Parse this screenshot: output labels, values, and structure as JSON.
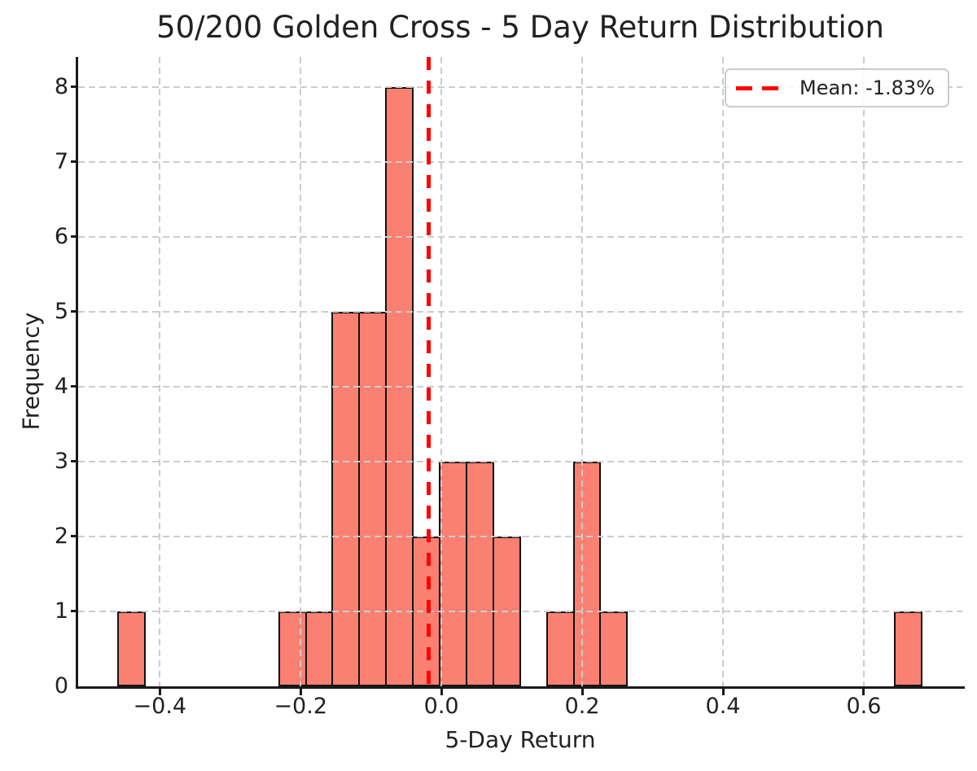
{
  "chart_data": {
    "type": "bar",
    "subtype": "histogram",
    "title": "50/200 Golden Cross - 5 Day Return Distribution",
    "xlabel": "5-Day Return",
    "ylabel": "Frequency",
    "xlim": [
      -0.516,
      0.74
    ],
    "ylim": [
      0,
      8.4
    ],
    "xticks": [
      -0.4,
      -0.2,
      0.0,
      0.2,
      0.4,
      0.6
    ],
    "xtick_labels": [
      "−0.4",
      "−0.2",
      "0.0",
      "0.2",
      "0.4",
      "0.6"
    ],
    "yticks": [
      0,
      1,
      2,
      3,
      4,
      5,
      6,
      7,
      8
    ],
    "ytick_labels": [
      "0",
      "1",
      "2",
      "3",
      "4",
      "5",
      "6",
      "7",
      "8"
    ],
    "grid": true,
    "grid_style": "dashed",
    "grid_over_bars": true,
    "bins": {
      "start": -0.459,
      "width": 0.03805,
      "counts": [
        1,
        0,
        0,
        0,
        0,
        0,
        1,
        1,
        5,
        5,
        8,
        2,
        3,
        3,
        2,
        0,
        1,
        3,
        1,
        0,
        0,
        0,
        0,
        0,
        0,
        0,
        0,
        0,
        0,
        1
      ]
    },
    "total_observations": 37,
    "mean_line": {
      "value": -0.0183,
      "label": "Mean: -1.83%",
      "style": "dashed"
    },
    "legend_position": "upper right",
    "colors": {
      "bar_fill": "#fa8072",
      "bar_edge": "#111111",
      "mean_line": "#ff0000",
      "grid": "#cccccc",
      "text": "#212121",
      "spine": "#1a1a1a"
    }
  }
}
